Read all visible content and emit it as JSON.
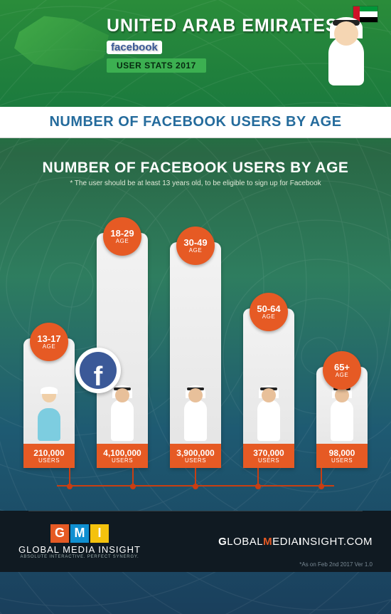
{
  "header": {
    "country": "UNITED ARAB EMIRATES",
    "brand": "facebook",
    "stats_label": "USER STATS 2017"
  },
  "strip_title": "NUMBER OF FACEBOOK USERS BY AGE",
  "chart": {
    "type": "bar",
    "title": "NUMBER OF FACEBOOK USERS BY AGE",
    "note": "* The user should be at least 13 years old, to be eligible to sign up for Facebook",
    "age_label": "AGE",
    "users_label": "USERS",
    "bar_color": "#e9e9e9",
    "badge_color": "#e65a24",
    "value_box_color": "#e65a24",
    "max_value": 4100000,
    "bars": [
      {
        "range": "13-17",
        "value": 210000,
        "display": "210,000",
        "height_pct": 55,
        "person": "child"
      },
      {
        "range": "18-29",
        "value": 4100000,
        "display": "4,100,000",
        "height_pct": 100,
        "person": "adult"
      },
      {
        "range": "30-49",
        "value": 3900000,
        "display": "3,900,000",
        "height_pct": 96,
        "person": "adult"
      },
      {
        "range": "50-64",
        "value": 370000,
        "display": "370,000",
        "height_pct": 68,
        "person": "adult"
      },
      {
        "range": "65+",
        "value": 98000,
        "display": "98,000",
        "height_pct": 43,
        "person": "adult"
      }
    ]
  },
  "footer": {
    "logo_letters": [
      "G",
      "M",
      "I"
    ],
    "logo_colors": [
      "#e65a24",
      "#0f8fd1",
      "#f4c20d"
    ],
    "company": "GLOBAL MEDIA INSIGHT",
    "tagline": "ABSOLUTE INTERACTIVE. PERFECT SYNERGY.",
    "site_g": "G",
    "site_lobal": "LOBAL",
    "site_m": "M",
    "site_edia": "EDIA",
    "site_i": "I",
    "site_nsight": "NSIGHT.COM",
    "as_of": "*As on Feb 2nd 2017  Ver 1.0"
  }
}
